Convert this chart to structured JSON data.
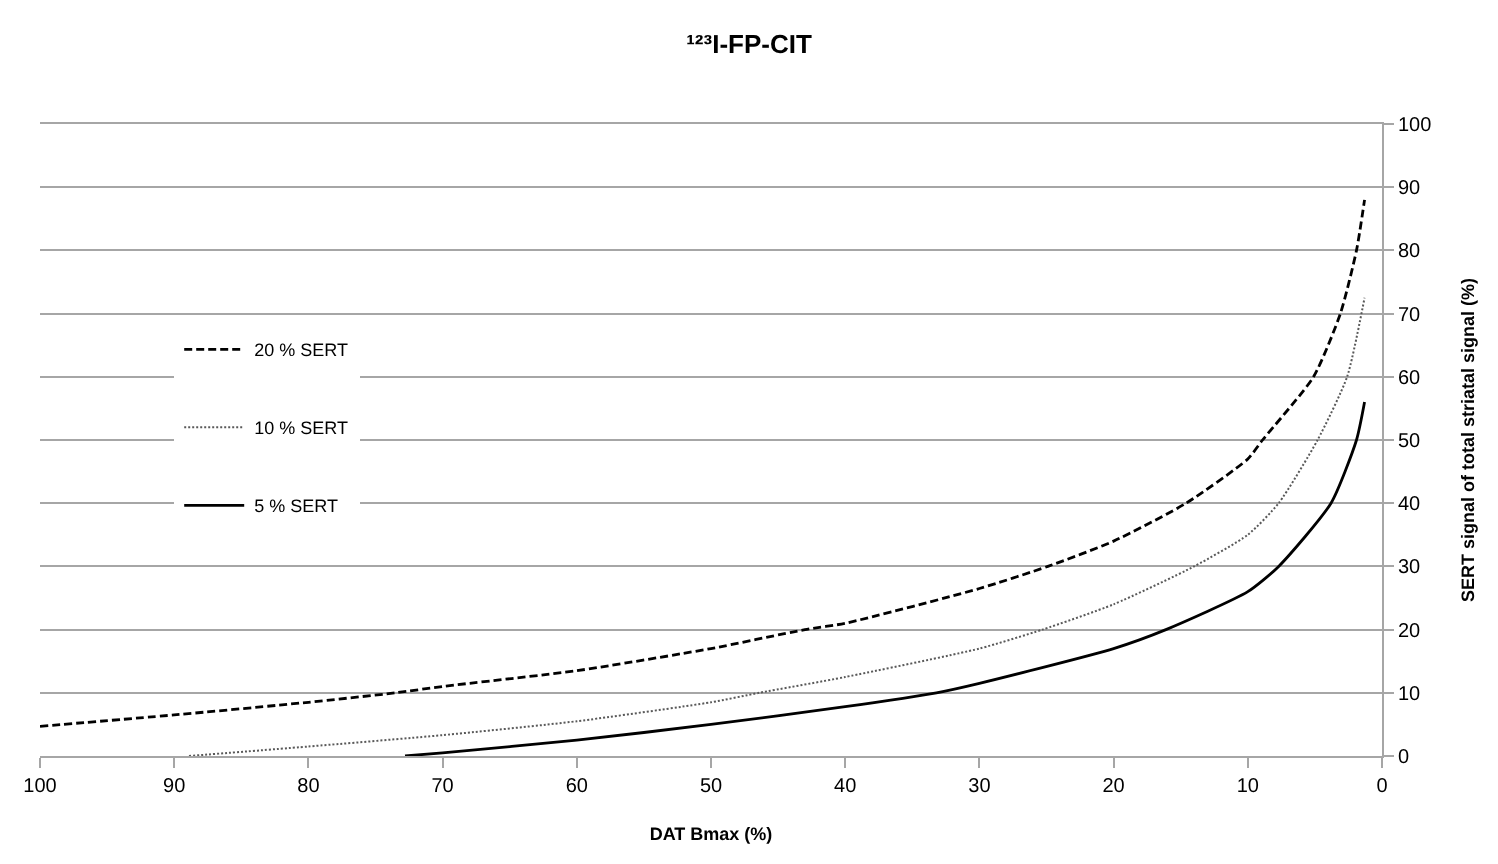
{
  "chart_data": {
    "type": "line",
    "title": "¹²³I-FP-CIT",
    "xlabel": "DAT Bmax (%)",
    "ylabel": "SERT signal of total striatal signal (%)",
    "xlim": [
      100,
      0
    ],
    "xticks": [
      100,
      90,
      80,
      70,
      60,
      50,
      40,
      30,
      20,
      10,
      0
    ],
    "ylim": [
      0,
      100
    ],
    "yticks": [
      0,
      10,
      20,
      30,
      40,
      50,
      60,
      70,
      80,
      90,
      100
    ],
    "grid": "y",
    "legend": "left",
    "marker": "none",
    "series": [
      {
        "name": "20 % SERT",
        "color": "#000000",
        "line_style": "dashed",
        "x": [
          100,
          90,
          80,
          73.5,
          70,
          60,
          50,
          43,
          40,
          30,
          24.9,
          20,
          14.6,
          10,
          8.9,
          5.1,
          3.1,
          1.9,
          1.3
        ],
        "values": [
          4.7,
          6.5,
          8.5,
          10,
          11,
          13.5,
          17,
          20,
          21,
          26.5,
          30,
          34,
          40,
          47,
          50,
          60,
          70,
          80,
          88
        ]
      },
      {
        "name": "10 % SERT",
        "color": "#595959",
        "line_style": "dotted",
        "x": [
          88.9,
          80,
          70,
          60,
          50,
          46.4,
          40,
          30,
          25.3,
          20,
          14,
          10,
          7.7,
          4.8,
          2.6,
          1.3
        ],
        "values": [
          0,
          1.5,
          3.3,
          5.5,
          8.5,
          10,
          12.5,
          17,
          20,
          24,
          30,
          35,
          40,
          50,
          60,
          72.5
        ]
      },
      {
        "name": "5 % SERT",
        "color": "#000000",
        "line_style": "solid",
        "x": [
          72.8,
          70,
          60,
          50,
          40,
          33.2,
          30,
          20,
          16.1,
          10,
          7.7,
          3.8,
          1.9,
          1.3
        ],
        "values": [
          0,
          0.5,
          2.5,
          5,
          7.8,
          10,
          11.5,
          17,
          20,
          26,
          30,
          40,
          50,
          56
        ]
      }
    ]
  }
}
